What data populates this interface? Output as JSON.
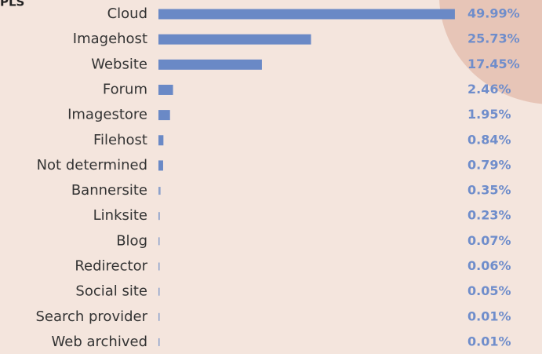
{
  "chart_data": {
    "type": "bar",
    "orientation": "horizontal",
    "title": "PLS",
    "categories": [
      "Cloud",
      "Imagehost",
      "Website",
      "Forum",
      "Imagestore",
      "Filehost",
      "Not determined",
      "Bannersite",
      "Linksite",
      "Blog",
      "Redirector",
      "Social site",
      "Search provider",
      "Web archived"
    ],
    "values": [
      49.99,
      25.73,
      17.45,
      2.46,
      1.95,
      0.84,
      0.79,
      0.35,
      0.23,
      0.07,
      0.06,
      0.05,
      0.01,
      0.01
    ],
    "value_labels": [
      "49.99%",
      "25.73%",
      "17.45%",
      "2.46%",
      "1.95%",
      "0.84%",
      "0.79%",
      "0.35%",
      "0.23%",
      "0.07%",
      "0.06%",
      "0.05%",
      "0.01%",
      "0.01%"
    ],
    "color": "#6a89c6",
    "xlim": [
      0,
      50
    ]
  }
}
